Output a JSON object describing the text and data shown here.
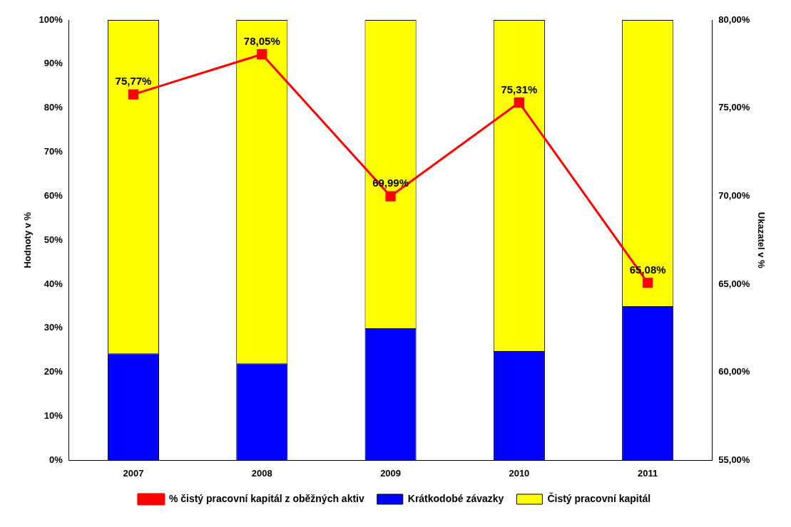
{
  "chart_data": {
    "type": "bar",
    "stacked": true,
    "categories": [
      "2007",
      "2008",
      "2009",
      "2010",
      "2011"
    ],
    "series": [
      {
        "name": "Krátkodobé závazky",
        "color": "#0000ff",
        "values": [
          24.3,
          22.0,
          30.0,
          24.8,
          35.0
        ]
      },
      {
        "name": "Čistý pracovní kapitál",
        "color": "#ffff00",
        "values": [
          75.7,
          78.0,
          70.0,
          75.2,
          65.0
        ]
      },
      {
        "name": "% čistý pracovní kapitál z oběžných aktiv",
        "type": "line",
        "axis": "y2",
        "color": "#ff0000",
        "marker": "square",
        "values": [
          75.77,
          78.05,
          69.99,
          75.31,
          65.08
        ],
        "value_labels": [
          "75,77%",
          "78,05%",
          "69,99%",
          "75,31%",
          "65,08%"
        ]
      }
    ],
    "ylabel": "Hodnoty v %",
    "y2label": "Ukazatel v %",
    "ylim": [
      0,
      100
    ],
    "yticks": [
      {
        "value": 0,
        "label": "0%"
      },
      {
        "value": 10,
        "label": "10%"
      },
      {
        "value": 20,
        "label": "20%"
      },
      {
        "value": 30,
        "label": "30%"
      },
      {
        "value": 40,
        "label": "40%"
      },
      {
        "value": 50,
        "label": "50%"
      },
      {
        "value": 60,
        "label": "60%"
      },
      {
        "value": 70,
        "label": "70%"
      },
      {
        "value": 80,
        "label": "80%"
      },
      {
        "value": 90,
        "label": "90%"
      },
      {
        "value": 100,
        "label": "100%"
      }
    ],
    "y2lim": [
      55,
      80
    ],
    "y2ticks": [
      {
        "value": 55,
        "label": "55,00%"
      },
      {
        "value": 60,
        "label": "60,00%"
      },
      {
        "value": 65,
        "label": "65,00%"
      },
      {
        "value": 70,
        "label": "70,00%"
      },
      {
        "value": 75,
        "label": "75,00%"
      },
      {
        "value": 80,
        "label": "80,00%"
      }
    ],
    "grid": false,
    "legend": "bottom"
  }
}
